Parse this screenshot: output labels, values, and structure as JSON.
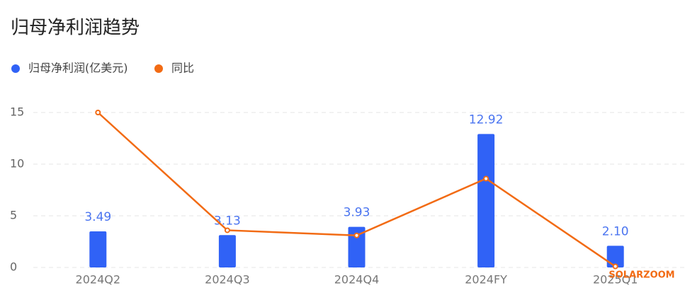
{
  "chart_data": {
    "type": "bar-line",
    "title": "归母净利润趋势",
    "categories": [
      "2024Q2",
      "2024Q3",
      "2024Q4",
      "2024FY",
      "2025Q1"
    ],
    "series": [
      {
        "name": "归母净利润(亿美元)",
        "color": "#3062f6",
        "type": "bar",
        "values": [
          3.49,
          3.13,
          3.93,
          12.92,
          2.1
        ],
        "value_labels": [
          "3.49",
          "3.13",
          "3.93",
          "12.92",
          "2.10"
        ]
      },
      {
        "name": "同比",
        "color": "#f26b14",
        "type": "line",
        "values": [
          15,
          3.6,
          3.1,
          8.6,
          0.1
        ]
      }
    ],
    "ylim": [
      0,
      15
    ],
    "yticks": [
      0,
      5,
      10,
      15
    ],
    "grid": true,
    "legend": "top-left",
    "annotation": "SOLARZOOM"
  }
}
